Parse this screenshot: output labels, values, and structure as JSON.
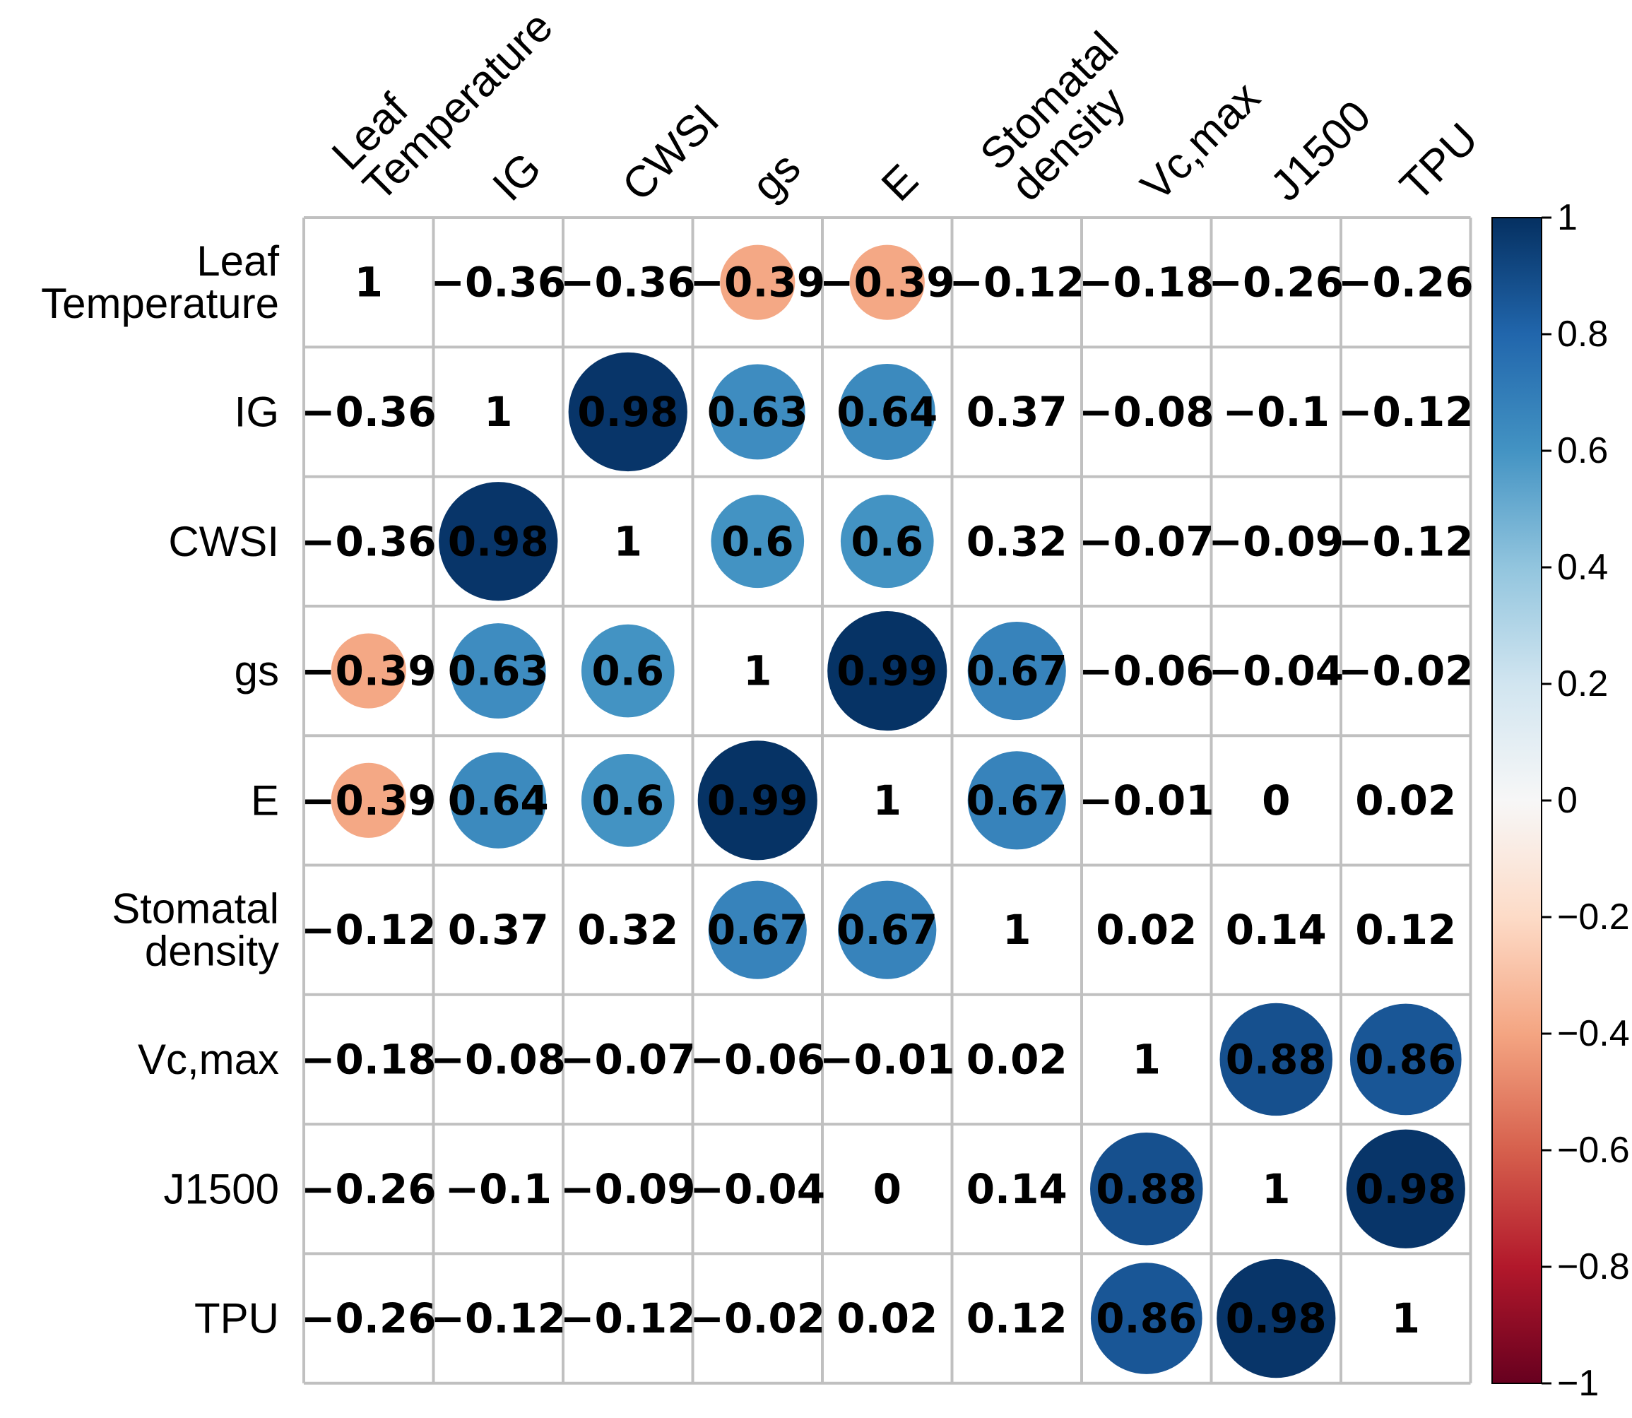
{
  "chart_data": {
    "type": "heatmap",
    "variables": [
      {
        "lines": [
          "Leaf",
          "Temperature"
        ]
      },
      {
        "lines": [
          "IG"
        ]
      },
      {
        "lines": [
          "CWSI"
        ]
      },
      {
        "lines": [
          "gs"
        ]
      },
      {
        "lines": [
          "E"
        ]
      },
      {
        "lines": [
          "Stomatal",
          "density"
        ]
      },
      {
        "lines": [
          "Vc,max"
        ]
      },
      {
        "lines": [
          "J1500"
        ]
      },
      {
        "lines": [
          "TPU"
        ]
      }
    ],
    "matrix": [
      [
        1,
        -0.36,
        -0.36,
        -0.39,
        -0.39,
        -0.12,
        -0.18,
        -0.26,
        -0.26
      ],
      [
        -0.36,
        1,
        0.98,
        0.63,
        0.64,
        0.37,
        -0.08,
        -0.1,
        -0.12
      ],
      [
        -0.36,
        0.98,
        1,
        0.6,
        0.6,
        0.32,
        -0.07,
        -0.09,
        -0.12
      ],
      [
        -0.39,
        0.63,
        0.6,
        1,
        0.99,
        0.67,
        -0.06,
        -0.04,
        -0.02
      ],
      [
        -0.39,
        0.64,
        0.6,
        0.99,
        1,
        0.67,
        -0.01,
        0,
        0.02
      ],
      [
        -0.12,
        0.37,
        0.32,
        0.67,
        0.67,
        1,
        0.02,
        0.14,
        0.12
      ],
      [
        -0.18,
        -0.08,
        -0.07,
        -0.06,
        -0.01,
        0.02,
        1,
        0.88,
        0.86
      ],
      [
        -0.26,
        -0.1,
        -0.09,
        -0.04,
        0,
        0.14,
        0.88,
        1,
        0.98
      ],
      [
        -0.26,
        -0.12,
        -0.12,
        -0.02,
        0.02,
        0.12,
        0.86,
        0.98,
        1
      ]
    ],
    "colorbar": {
      "range": [
        -1,
        1
      ],
      "ticks": [
        "1",
        "0.8",
        "0.6",
        "0.4",
        "0.2",
        "0",
        "−0.2",
        "−0.4",
        "−0.6",
        "−0.8",
        "−1"
      ],
      "tick_values": [
        1,
        0.8,
        0.6,
        0.4,
        0.2,
        0,
        -0.2,
        -0.4,
        -0.6,
        -0.8,
        -1
      ]
    },
    "circle_threshold": 0.39,
    "diagonal_circles": false,
    "colors": {
      "positive_strong": "#0b2f63",
      "positive_mid": "#2b86c0",
      "neutral": "#f7f7f7",
      "negative_mid": "#f4a582",
      "negative_strong": "#67001f",
      "grid": "#c0c0c0"
    }
  }
}
